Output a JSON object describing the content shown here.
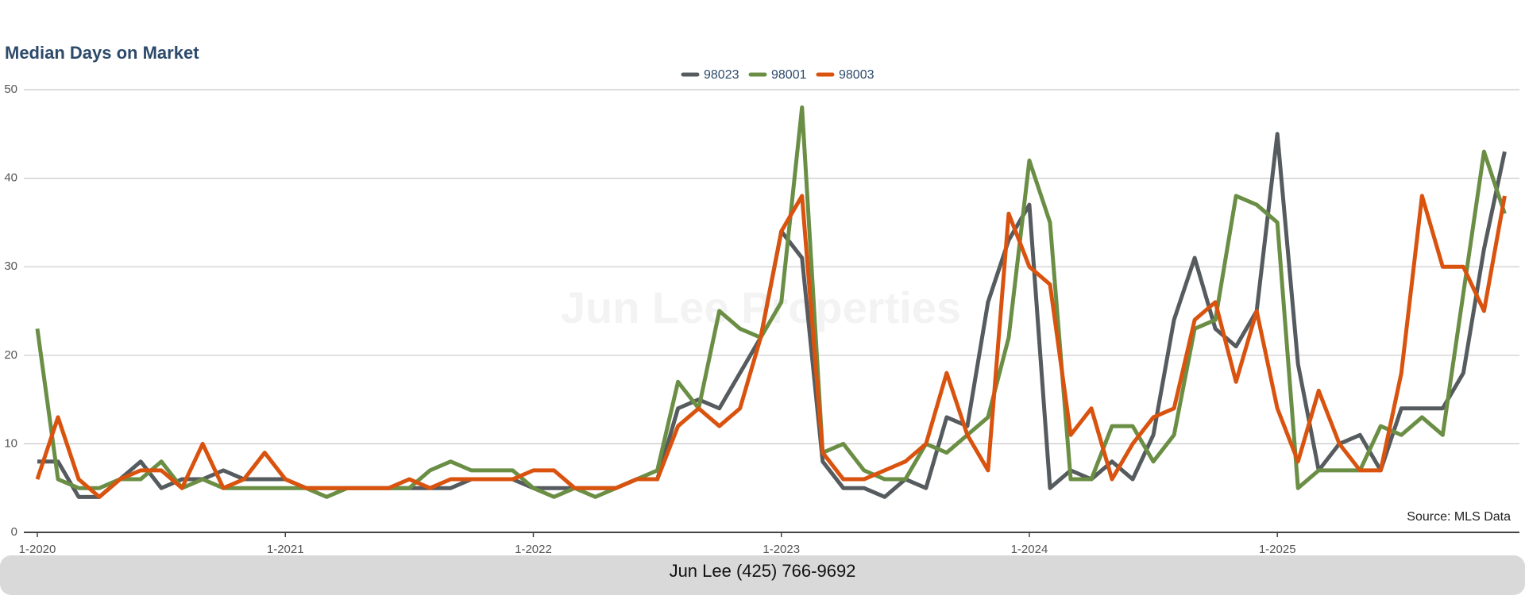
{
  "chart_data": {
    "type": "line",
    "title": "Median Days on Market",
    "watermark": "Jun Lee Properties",
    "source": "Source: MLS Data",
    "footer": "Jun Lee (425) 766-9692",
    "categories": [
      "1-2020",
      null,
      null,
      null,
      null,
      null,
      null,
      null,
      null,
      null,
      null,
      null,
      "1-2021",
      null,
      null,
      null,
      null,
      null,
      null,
      null,
      null,
      null,
      null,
      null,
      "1-2022",
      null,
      null,
      null,
      null,
      null,
      null,
      null,
      null,
      null,
      null,
      null,
      "1-2023",
      null,
      null,
      null,
      null,
      null,
      null,
      null,
      null,
      null,
      null,
      null,
      "1-2024",
      null,
      null,
      null,
      null,
      null,
      null,
      null,
      null,
      null,
      null,
      null,
      "1-2025",
      null,
      null,
      null,
      null,
      null,
      null,
      null,
      null,
      null,
      null,
      null
    ],
    "ylim": [
      0,
      50
    ],
    "yticks": [
      0,
      10,
      20,
      30,
      40,
      50
    ],
    "grid": true,
    "legend": "top",
    "series": [
      {
        "name": "98023",
        "color": "#555b5e",
        "values": [
          8,
          8,
          4,
          4,
          6,
          8,
          5,
          6,
          6,
          7,
          6,
          6,
          6,
          5,
          5,
          5,
          5,
          5,
          5,
          5,
          5,
          6,
          6,
          6,
          5,
          5,
          5,
          5,
          5,
          6,
          6,
          14,
          15,
          14,
          18,
          22,
          34,
          31,
          8,
          5,
          5,
          4,
          6,
          5,
          13,
          12,
          26,
          33,
          37,
          5,
          7,
          6,
          8,
          6,
          11,
          24,
          31,
          23,
          21,
          25,
          45,
          19,
          7,
          10,
          11,
          7,
          14,
          14,
          14,
          18,
          32,
          43
        ]
      },
      {
        "name": "98001",
        "color": "#6b8e45",
        "values": [
          23,
          6,
          5,
          5,
          6,
          6,
          8,
          5,
          6,
          5,
          5,
          5,
          5,
          5,
          4,
          5,
          5,
          5,
          5,
          7,
          8,
          7,
          7,
          7,
          5,
          4,
          5,
          4,
          5,
          6,
          7,
          17,
          14,
          25,
          23,
          22,
          26,
          48,
          9,
          10,
          7,
          6,
          6,
          10,
          9,
          11,
          13,
          22,
          42,
          35,
          6,
          6,
          12,
          12,
          8,
          11,
          23,
          24,
          38,
          37,
          35,
          5,
          7,
          7,
          7,
          12,
          11,
          13,
          11,
          27,
          43,
          36
        ]
      },
      {
        "name": "98003",
        "color": "#d9530f",
        "values": [
          6,
          13,
          6,
          4,
          6,
          7,
          7,
          5,
          10,
          5,
          6,
          9,
          6,
          5,
          5,
          5,
          5,
          5,
          6,
          5,
          6,
          6,
          6,
          6,
          7,
          7,
          5,
          5,
          5,
          6,
          6,
          12,
          14,
          12,
          14,
          22,
          34,
          38,
          9,
          6,
          6,
          7,
          8,
          10,
          18,
          11,
          7,
          36,
          30,
          28,
          11,
          14,
          6,
          10,
          13,
          14,
          24,
          26,
          17,
          25,
          14,
          8,
          16,
          10,
          7,
          7,
          18,
          38,
          30,
          30,
          25,
          38
        ]
      }
    ]
  }
}
